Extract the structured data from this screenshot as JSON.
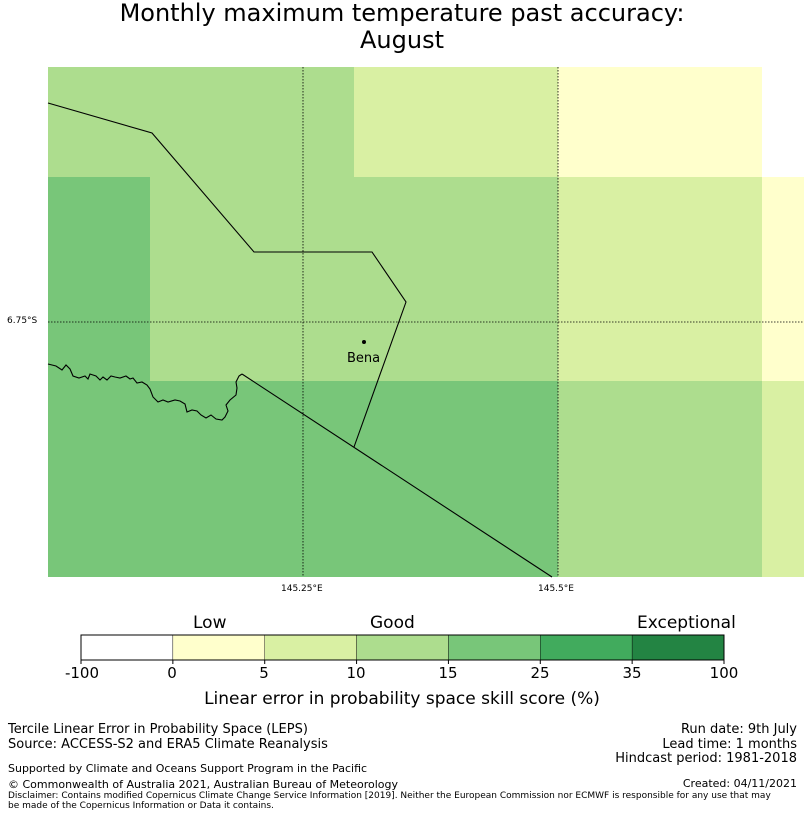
{
  "title": {
    "line1": "Monthly maximum temperature past accuracy:",
    "line2": "August"
  },
  "map": {
    "place_label": "Bena",
    "lat_label": "6.75°S",
    "lon_labels": [
      "145.25°E",
      "145.5°E"
    ]
  },
  "colorbar": {
    "categories": [
      "Low",
      "Good",
      "Exceptional"
    ],
    "tick_labels": [
      "-100",
      "0",
      "5",
      "10",
      "15",
      "25",
      "35",
      "100"
    ],
    "colors": [
      "#ffffff",
      "#ffffcc",
      "#d9f0a3",
      "#addd8e",
      "#78c679",
      "#41ab5d",
      "#238443"
    ],
    "xlabel": "Linear error in probability space skill score (%)"
  },
  "footer": {
    "method": "Tercile Linear Error in Probability Space (LEPS)",
    "source": "Source: ACCESS-S2 and ERA5 Climate Reanalysis",
    "run_date": "Run date: 9th July",
    "lead_time": "Lead time: 1 months",
    "hindcast": "Hindcast period: 1981-2018",
    "support": "Supported by Climate and Oceans Support Program in the Pacific",
    "copyright": "© Commonwealth of Australia 2021, Australian Bureau of Meteorology",
    "created": "Created: 04/11/2021",
    "disclaimer1": "Disclaimer: Contains modified Copernicus Climate Change Service Information [2019]. Neither the European Commission nor ECMWF is responsible for any use that may",
    "disclaimer2": "be made of the Copernicus Information or Data it contains."
  }
}
